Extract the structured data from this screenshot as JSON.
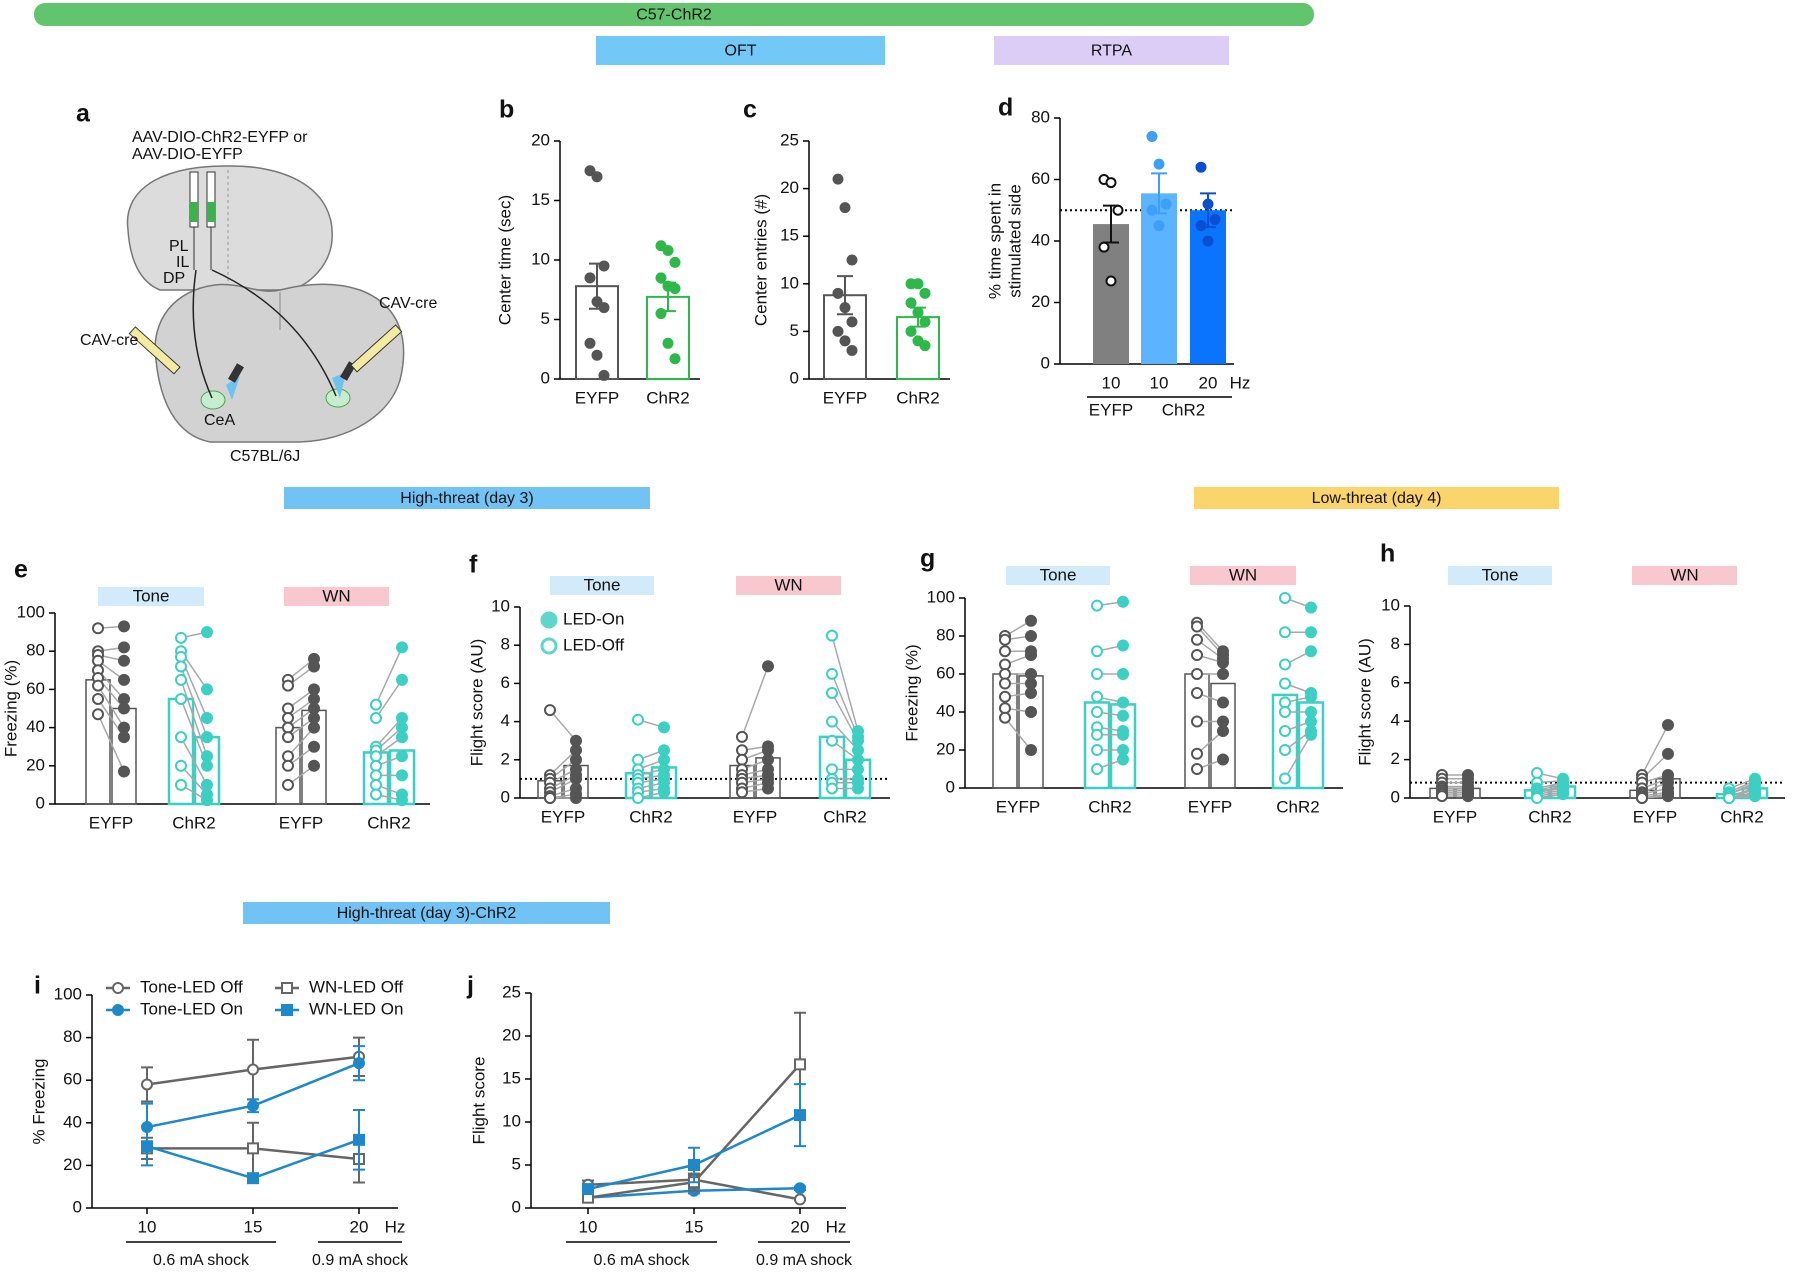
{
  "banners": [
    {
      "text": "C57-ChR2",
      "color": "#63c46e"
    },
    {
      "text": "OFT",
      "color": "#72c8f7"
    },
    {
      "text": "RTPA",
      "color": "#dccdf7"
    },
    {
      "text": "High-threat (day 3)",
      "color": "#72c3f5"
    },
    {
      "text": "Low-threat (day 4)",
      "color": "#fbd46c"
    },
    {
      "text": "High-threat (day 3)-ChR2",
      "color": "#72c3f5"
    }
  ],
  "diagram": {
    "label": "a",
    "injection": [
      "AAV-DIO-ChR2-EYFP or",
      "AAV-DIO-EYFP"
    ],
    "regions": [
      "PL",
      "IL",
      "DP"
    ],
    "left_virus": "CAV-cre",
    "right_virus": "CAV-cre",
    "target": "CeA",
    "strain": "C57BL/6J"
  },
  "chart_data": [
    {
      "type": "bar_dot",
      "label": "b",
      "ylabel": "Center time (sec)",
      "ylim": [
        0,
        20
      ],
      "yticks": [
        0,
        5,
        10,
        15,
        20
      ],
      "categories": [
        "EYFP",
        "ChR2"
      ],
      "values": [
        7.8,
        6.9
      ],
      "errors": [
        1.9,
        1.2
      ],
      "filled": false,
      "colors": [
        "#555555",
        "#2db84a"
      ],
      "point_colors": [
        "#555555",
        "#2db84a"
      ],
      "point_hollow": [
        false,
        false
      ],
      "points": [
        [
          17.5,
          17,
          9.5,
          8.5,
          6.5,
          6,
          3,
          2,
          0.3
        ],
        [
          11.2,
          10.8,
          9.8,
          8.5,
          7.8,
          7.6,
          5.5,
          3,
          1.7
        ]
      ]
    },
    {
      "type": "bar_dot",
      "label": "c",
      "ylabel": "Center entries (#)",
      "ylim": [
        0,
        25
      ],
      "yticks": [
        0,
        5,
        10,
        15,
        20,
        25
      ],
      "categories": [
        "EYFP",
        "ChR2"
      ],
      "values": [
        8.8,
        6.5
      ],
      "errors": [
        2,
        1
      ],
      "filled": false,
      "colors": [
        "#555555",
        "#2db84a"
      ],
      "point_colors": [
        "#555555",
        "#2db84a"
      ],
      "point_hollow": [
        false,
        false
      ],
      "points": [
        [
          21,
          18,
          12.5,
          9,
          7.5,
          6,
          5,
          4,
          3
        ],
        [
          10,
          10,
          9,
          8,
          7,
          6,
          5,
          4,
          3.5
        ]
      ]
    },
    {
      "type": "bar_dot",
      "label": "d",
      "ylabel": [
        "% time spent in",
        "stimulated side"
      ],
      "ylim": [
        0,
        80
      ],
      "yticks": [
        0,
        20,
        40,
        60,
        80
      ],
      "categories": [
        "10",
        "10",
        "20"
      ],
      "xunit": "Hz",
      "groups": [
        "EYFP",
        "ChR2"
      ],
      "refline": 50,
      "values": [
        45.5,
        55.5,
        50
      ],
      "errors": [
        6,
        6.5,
        5.5
      ],
      "filled": true,
      "colors": [
        "#808080",
        "#5cb3ff",
        "#0a74ff"
      ],
      "point_colors": [
        "#111111",
        "#3d9ff5",
        "#0a4fd0"
      ],
      "point_hollow": [
        true,
        false,
        false
      ],
      "points": [
        [
          60,
          59,
          50,
          38,
          27
        ],
        [
          74,
          65,
          52,
          50,
          45
        ],
        [
          64,
          52,
          47,
          45,
          40
        ]
      ]
    },
    {
      "type": "paired",
      "label": "e",
      "ylabel": "Freezing (%)",
      "ylim": [
        0,
        100
      ],
      "yticks": [
        0,
        20,
        40,
        60,
        80,
        100
      ],
      "groups": [
        {
          "name": "Tone",
          "color": "#d2ebfa"
        },
        {
          "name": "WN",
          "color": "#f9c8ce"
        }
      ],
      "categories": [
        "EYFP",
        "ChR2",
        "EYFP",
        "ChR2"
      ],
      "colors": [
        "#555555",
        "#3ccfc4",
        "#555555",
        "#3ccfc4"
      ],
      "off_means": [
        65,
        55,
        40,
        27
      ],
      "on_means": [
        50,
        35,
        49,
        28
      ],
      "off_points": [
        [
          92,
          80,
          78,
          75,
          70,
          66,
          62,
          55,
          47
        ],
        [
          87,
          80,
          77,
          72,
          65,
          55,
          35,
          20,
          10
        ],
        [
          65,
          62,
          50,
          45,
          40,
          35,
          25,
          20,
          10
        ],
        [
          52,
          45,
          30,
          28,
          25,
          20,
          15,
          10,
          5
        ]
      ],
      "on_points": [
        [
          93,
          82,
          75,
          65,
          55,
          50,
          40,
          35,
          17
        ],
        [
          90,
          60,
          45,
          35,
          25,
          20,
          10,
          5,
          2
        ],
        [
          76,
          72,
          60,
          55,
          50,
          45,
          40,
          30,
          20
        ],
        [
          82,
          65,
          45,
          40,
          35,
          25,
          15,
          5,
          2
        ]
      ]
    },
    {
      "type": "paired",
      "label": "f",
      "ylabel": "Flight score (AU)",
      "ylim": [
        0,
        10
      ],
      "yticks": [
        0,
        2,
        4,
        6,
        8,
        10
      ],
      "refline": 1,
      "legend": [
        "LED-On",
        "LED-Off"
      ],
      "groups": [
        {
          "name": "Tone",
          "color": "#d2ebfa"
        },
        {
          "name": "WN",
          "color": "#f9c8ce"
        }
      ],
      "categories": [
        "EYFP",
        "ChR2",
        "EYFP",
        "ChR2"
      ],
      "colors": [
        "#555555",
        "#3ccfc4",
        "#555555",
        "#3ccfc4"
      ],
      "off_means": [
        0.9,
        1.3,
        1.7,
        3.2
      ],
      "on_means": [
        1.7,
        1.6,
        2.1,
        2
      ],
      "off_points": [
        [
          4.6,
          1.2,
          1,
          0.8,
          0.5,
          0.3,
          0.1,
          0,
          0
        ],
        [
          4.1,
          2,
          1.5,
          1.2,
          1,
          0.8,
          0.5,
          0.3,
          0
        ],
        [
          3.2,
          2.5,
          2,
          1.5,
          1.2,
          1,
          0.8,
          0.5,
          0.3
        ],
        [
          8.5,
          6.5,
          5.5,
          4,
          3,
          1.5,
          1,
          0.8,
          0.5
        ]
      ],
      "on_points": [
        [
          3,
          2.5,
          2,
          1.5,
          1.2,
          1,
          0.5,
          0.2,
          0
        ],
        [
          3.7,
          2.5,
          2,
          1.5,
          1.2,
          1,
          0.8,
          0.5,
          0.3
        ],
        [
          6.9,
          2.7,
          2.5,
          2,
          1.5,
          1.2,
          1,
          0.8,
          0.5
        ],
        [
          3.5,
          3.2,
          3,
          2.5,
          2,
          1.5,
          1,
          0.8,
          0.5
        ]
      ]
    },
    {
      "type": "paired",
      "label": "g",
      "ylabel": "Freezing (%)",
      "ylim": [
        0,
        100
      ],
      "yticks": [
        0,
        20,
        40,
        60,
        80,
        100
      ],
      "groups": [
        {
          "name": "Tone",
          "color": "#d2ebfa"
        },
        {
          "name": "WN",
          "color": "#f9c8ce"
        }
      ],
      "categories": [
        "EYFP",
        "ChR2",
        "EYFP",
        "ChR2"
      ],
      "colors": [
        "#555555",
        "#3ccfc4",
        "#555555",
        "#3ccfc4"
      ],
      "off_means": [
        60,
        45,
        60,
        49
      ],
      "on_means": [
        59,
        44,
        55,
        45
      ],
      "off_points": [
        [
          80,
          78,
          72,
          65,
          60,
          55,
          48,
          42,
          37
        ],
        [
          96,
          72,
          60,
          48,
          40,
          32,
          28,
          20,
          10
        ],
        [
          87,
          85,
          78,
          70,
          60,
          50,
          35,
          18,
          10
        ],
        [
          100,
          82,
          65,
          55,
          45,
          40,
          30,
          20,
          5
        ]
      ],
      "on_points": [
        [
          88,
          80,
          72,
          70,
          60,
          55,
          50,
          40,
          20
        ],
        [
          98,
          75,
          60,
          45,
          38,
          30,
          28,
          20,
          15
        ],
        [
          72,
          70,
          68,
          66,
          60,
          45,
          35,
          30,
          15
        ],
        [
          95,
          82,
          72,
          50,
          48,
          40,
          35,
          30,
          28
        ]
      ]
    },
    {
      "type": "paired",
      "label": "h",
      "ylabel": "Flight score (AU)",
      "ylim": [
        0,
        10
      ],
      "yticks": [
        0,
        2,
        4,
        6,
        8,
        10
      ],
      "refline": 0.8,
      "groups": [
        {
          "name": "Tone",
          "color": "#d2ebfa"
        },
        {
          "name": "WN",
          "color": "#f9c8ce"
        }
      ],
      "categories": [
        "EYFP",
        "ChR2",
        "EYFP",
        "ChR2"
      ],
      "colors": [
        "#555555",
        "#3ccfc4",
        "#555555",
        "#3ccfc4"
      ],
      "off_means": [
        0.5,
        0.4,
        0.4,
        0.2
      ],
      "on_means": [
        0.5,
        0.6,
        1,
        0.5
      ],
      "off_points": [
        [
          1.2,
          1,
          0.8,
          0.6,
          0.5,
          0.4,
          0.3,
          0.2,
          0.1
        ],
        [
          1.3,
          0.8,
          0.5,
          0.4,
          0.3,
          0.3,
          0.2,
          0.1,
          0
        ],
        [
          1.2,
          1,
          0.8,
          0.5,
          0.3,
          0.2,
          0.1,
          0,
          0
        ],
        [
          0.5,
          0.3,
          0.2,
          0.2,
          0.1,
          0.1,
          0,
          0,
          0
        ]
      ],
      "on_points": [
        [
          1.2,
          1,
          0.8,
          0.6,
          0.5,
          0.4,
          0.3,
          0.2,
          0.1
        ],
        [
          1,
          0.9,
          0.8,
          0.7,
          0.6,
          0.5,
          0.4,
          0.3,
          0.2
        ],
        [
          3.8,
          2.3,
          1.2,
          1,
          0.8,
          0.5,
          0.3,
          0.2,
          0.1
        ],
        [
          1,
          0.9,
          0.8,
          0.7,
          0.5,
          0.4,
          0.3,
          0.2,
          0.1
        ]
      ]
    },
    {
      "type": "line",
      "label": "i",
      "ylabel": "% Freezing",
      "ylim": [
        0,
        100
      ],
      "yticks": [
        0,
        20,
        40,
        60,
        80,
        100
      ],
      "categories": [
        "10",
        "15",
        "20"
      ],
      "xunit": "Hz",
      "x_groups": [
        "0.6 mA shock",
        "0.9 mA shock"
      ],
      "series": [
        {
          "name": "Tone-LED Off",
          "color": "#666666",
          "marker": "circle",
          "hollow": true,
          "values": [
            58,
            65,
            71
          ],
          "errors": [
            8,
            14,
            9
          ]
        },
        {
          "name": "Tone-LED On",
          "color": "#1e88c8",
          "marker": "circle",
          "hollow": false,
          "values": [
            38,
            48,
            68
          ],
          "errors": [
            11,
            3,
            8
          ]
        },
        {
          "name": "WN-LED Off",
          "color": "#666666",
          "marker": "square",
          "hollow": true,
          "values": [
            28,
            28,
            23
          ],
          "errors": [
            5,
            12,
            11
          ]
        },
        {
          "name": "WN-LED On",
          "color": "#1e88c8",
          "marker": "square",
          "hollow": false,
          "values": [
            29,
            14,
            32
          ],
          "errors": [
            9,
            2,
            14
          ]
        }
      ]
    },
    {
      "type": "line",
      "label": "j",
      "ylabel": "Flight score",
      "ylim": [
        0,
        25
      ],
      "yticks": [
        0,
        5,
        10,
        15,
        20,
        25
      ],
      "categories": [
        "10",
        "15",
        "20"
      ],
      "xunit": "Hz",
      "x_groups": [
        "0.6 mA shock",
        "0.9 mA shock"
      ],
      "series": [
        {
          "color": "#666666",
          "marker": "circle",
          "hollow": true,
          "values": [
            2.7,
            3.3,
            1
          ],
          "errors": [
            0.5,
            0.5,
            0.1
          ]
        },
        {
          "color": "#1e88c8",
          "marker": "circle",
          "hollow": false,
          "values": [
            1.2,
            2,
            2.3
          ],
          "errors": [
            0.3,
            0.3,
            0.2
          ]
        },
        {
          "color": "#666666",
          "marker": "square",
          "hollow": true,
          "values": [
            1.2,
            3,
            16.7
          ],
          "errors": [
            0.5,
            1,
            6
          ]
        },
        {
          "color": "#1e88c8",
          "marker": "square",
          "hollow": false,
          "values": [
            2.2,
            5,
            10.8
          ],
          "errors": [
            0.5,
            2,
            3.6
          ]
        }
      ]
    }
  ]
}
